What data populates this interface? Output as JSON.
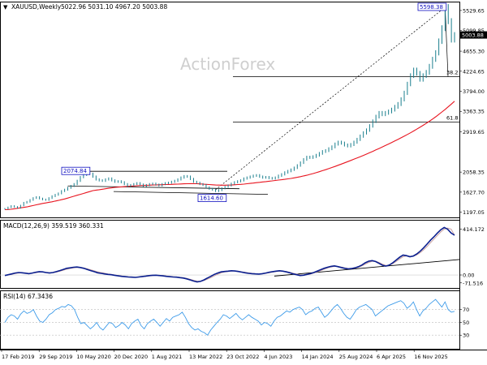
{
  "header": {
    "symbol": "XAUUSD,Weekly",
    "ohlc": "5022.96 5031.10 4967.20 5003.88"
  },
  "watermark": "ActionForex",
  "colors": {
    "price": "#1a7f8e",
    "sma": "#e8141f",
    "macd_main": "#0a1f8f",
    "macd_signal": "#c8a0a0",
    "rsi": "#3d9be9",
    "trend": "#000000",
    "annot_border": "#1010c0",
    "current_bg": "#000000"
  },
  "chart_data": [
    {
      "type": "line",
      "panel": "price",
      "title": "XAUUSD,Weekly",
      "x_labels": [
        "17 Feb 2019",
        "29 Sep 2019",
        "10 May 2020",
        "20 Dec 2020",
        "1 Aug 2021",
        "13 Mar 2022",
        "23 Oct 2022",
        "4 Jun 2023",
        "14 Jan 2024",
        "25 Aug 2024",
        "6 Apr 2025",
        "16 Nov 2025"
      ],
      "y_ticks": [
        "5529.65",
        "5099.85",
        "4655.30",
        "4224.65",
        "3794.00",
        "3363.35",
        "2919.65",
        "2058.35",
        "1627.70",
        "1197.05"
      ],
      "ylim": [
        1120,
        5650
      ],
      "current_value": "5003.88",
      "series": [
        {
          "key": "close",
          "values": [
            1270,
            1300,
            1330,
            1310,
            1290,
            1340,
            1400,
            1420,
            1460,
            1500,
            1520,
            1490,
            1470,
            1460,
            1500,
            1540,
            1570,
            1600,
            1650,
            1680,
            1720,
            1760,
            1800,
            1870,
            1950,
            2000,
            2040,
            2020,
            1960,
            1900,
            1880,
            1870,
            1900,
            1920,
            1880,
            1850,
            1860,
            1840,
            1800,
            1760,
            1780,
            1800,
            1820,
            1790,
            1760,
            1780,
            1800,
            1810,
            1790,
            1770,
            1800,
            1820,
            1830,
            1850,
            1870,
            1900,
            1940,
            1970,
            1960,
            1910,
            1850,
            1830,
            1800,
            1780,
            1730,
            1700,
            1680,
            1650,
            1670,
            1710,
            1740,
            1770,
            1810,
            1840,
            1860,
            1880,
            1920,
            1940,
            1960,
            1980,
            1990,
            1960,
            1940,
            1950,
            1930,
            1920,
            1940,
            1980,
            2010,
            2050,
            2080,
            2110,
            2150,
            2200,
            2260,
            2330,
            2380,
            2370,
            2390,
            2420,
            2460,
            2500,
            2520,
            2560,
            2600,
            2660,
            2700,
            2680,
            2640,
            2620,
            2650,
            2700,
            2760,
            2830,
            2900,
            2960,
            3050,
            3150,
            3250,
            3330,
            3300,
            3330,
            3360,
            3400,
            3460,
            3520,
            3620,
            3760,
            3950,
            4130,
            4250,
            4180,
            4050,
            4130,
            4200,
            4330,
            4480,
            4620,
            4870,
            5150,
            5598.38,
            5300,
            4900,
            5003.88
          ]
        },
        {
          "key": "sma",
          "values": [
            1250,
            1255,
            1260,
            1270,
            1280,
            1290,
            1300,
            1310,
            1325,
            1340,
            1355,
            1370,
            1385,
            1395,
            1410,
            1420,
            1435,
            1450,
            1465,
            1480,
            1500,
            1520,
            1540,
            1560,
            1580,
            1600,
            1620,
            1640,
            1660,
            1670,
            1680,
            1690,
            1700,
            1710,
            1720,
            1730,
            1735,
            1740,
            1745,
            1750,
            1755,
            1760,
            1765,
            1770,
            1772,
            1775,
            1777,
            1780,
            1782,
            1785,
            1788,
            1790,
            1792,
            1795,
            1798,
            1800,
            1803,
            1806,
            1808,
            1810,
            1810,
            1808,
            1805,
            1800,
            1795,
            1790,
            1785,
            1780,
            1778,
            1776,
            1776,
            1778,
            1780,
            1785,
            1790,
            1795,
            1800,
            1808,
            1815,
            1822,
            1830,
            1838,
            1846,
            1854,
            1862,
            1870,
            1878,
            1886,
            1894,
            1902,
            1912,
            1922,
            1934,
            1946,
            1960,
            1975,
            1990,
            2008,
            2026,
            2046,
            2066,
            2088,
            2110,
            2133,
            2156,
            2180,
            2205,
            2230,
            2256,
            2282,
            2308,
            2334,
            2360,
            2388,
            2416,
            2445,
            2474,
            2504,
            2534,
            2565,
            2596,
            2628,
            2660,
            2693,
            2726,
            2760,
            2795,
            2830,
            2866,
            2903,
            2941,
            2980,
            3020,
            3062,
            3105,
            3150,
            3197,
            3246,
            3297,
            3350,
            3405,
            3462,
            3520,
            3580
          ]
        }
      ],
      "annotations": {
        "high_label": "5598.38",
        "low_label": "1614.60",
        "prior_high_label": "2074.84",
        "fib_38": "38.2",
        "fib_61": "61.8",
        "fib_38_level": 4108,
        "fib_61_level": 3134,
        "range_top": 2074.84,
        "range_bottom": 1614.6
      }
    },
    {
      "type": "line",
      "panel": "macd",
      "title": "MACD(12,26,9) 359.519 360.331",
      "y_ticks": [
        "414.172",
        "0.00",
        "-71.516"
      ],
      "ylim": [
        -110,
        470
      ],
      "series": [
        {
          "key": "macd",
          "values": [
            -5,
            2,
            10,
            18,
            22,
            20,
            16,
            12,
            18,
            25,
            30,
            28,
            22,
            18,
            22,
            30,
            40,
            50,
            60,
            65,
            70,
            72,
            68,
            60,
            50,
            40,
            30,
            20,
            15,
            10,
            5,
            2,
            -3,
            -8,
            -12,
            -15,
            -18,
            -20,
            -22,
            -18,
            -14,
            -10,
            -6,
            -3,
            -2,
            -5,
            -8,
            -12,
            -15,
            -18,
            -20,
            -24,
            -28,
            -35,
            -45,
            -55,
            -62,
            -58,
            -45,
            -28,
            -12,
            5,
            18,
            28,
            32,
            35,
            38,
            36,
            32,
            26,
            20,
            15,
            12,
            10,
            8,
            12,
            18,
            24,
            30,
            35,
            38,
            35,
            28,
            20,
            10,
            2,
            -5,
            -2,
            5,
            12,
            22,
            35,
            48,
            60,
            70,
            78,
            82,
            76,
            68,
            60,
            55,
            58,
            65,
            75,
            90,
            110,
            125,
            130,
            122,
            105,
            88,
            80,
            90,
            110,
            135,
            160,
            180,
            175,
            165,
            172,
            190,
            215,
            245,
            280,
            315,
            345,
            380,
            410,
            430,
            414.172,
            380,
            359.519
          ]
        },
        {
          "key": "signal",
          "values": [
            -3,
            0,
            6,
            13,
            18,
            19,
            17,
            15,
            16,
            21,
            26,
            27,
            24,
            21,
            21,
            26,
            34,
            43,
            52,
            59,
            65,
            69,
            68,
            63,
            56,
            47,
            38,
            29,
            22,
            16,
            10,
            5,
            0,
            -5,
            -9,
            -13,
            -16,
            -18,
            -20,
            -19,
            -16,
            -13,
            -9,
            -5,
            -3,
            -4,
            -6,
            -9,
            -12,
            -15,
            -18,
            -21,
            -25,
            -31,
            -39,
            -48,
            -56,
            -57,
            -50,
            -38,
            -24,
            -8,
            7,
            19,
            27,
            32,
            36,
            36,
            34,
            29,
            24,
            19,
            15,
            12,
            10,
            11,
            15,
            20,
            26,
            31,
            35,
            35,
            31,
            24,
            16,
            8,
            1,
            -1,
            3,
            9,
            17,
            28,
            40,
            52,
            63,
            72,
            78,
            77,
            72,
            65,
            59,
            58,
            62,
            70,
            82,
            98,
            114,
            124,
            124,
            113,
            98,
            87,
            88,
            102,
            122,
            145,
            166,
            173,
            169,
            170,
            182,
            202,
            228,
            258,
            292,
            325,
            358,
            390,
            415,
            425,
            415,
            360.331
          ]
        },
        {
          "key": "trend",
          "values": [
            -5,
            -5,
            -5,
            -5,
            -5,
            -5,
            -5,
            -5,
            -5,
            -5,
            -5,
            -5,
            -5,
            -5,
            -5,
            -5,
            -5,
            -5,
            -5,
            -5,
            -5,
            -5,
            -5,
            -5,
            -5,
            -5,
            -5,
            -5,
            -5,
            -5,
            -5,
            -5,
            -5,
            -5,
            -5,
            -5,
            -5,
            -5,
            -5,
            -5,
            -5,
            -5,
            -5,
            -5,
            -5,
            -5,
            -5,
            -5,
            -5,
            -5,
            -5,
            -5,
            -5,
            -5,
            -5,
            -5,
            -5,
            -5,
            -5,
            -5,
            -5,
            -5,
            -5,
            -5,
            -5,
            -5,
            -5,
            -5,
            -5,
            -5,
            -5,
            -5,
            -5,
            -5,
            -5,
            -5,
            -5,
            -5,
            -5,
            -5,
            -5,
            -5,
            -5,
            -5,
            -5,
            -5,
            -5,
            -5,
            -5,
            -5,
            -5,
            -5,
            -5,
            -5,
            -5,
            -5,
            -5,
            -5,
            -5,
            -5,
            -5,
            -5,
            -5,
            -5,
            -5,
            -5,
            -5,
            -5,
            -5,
            -5,
            -5,
            -5,
            -5,
            -5,
            -5,
            -5,
            -5,
            -5,
            -5,
            -5,
            -5,
            -5,
            -5,
            -5,
            -5,
            -5,
            -5,
            -5,
            -5,
            -5,
            -5,
            -5,
            -5,
            -5,
            -5,
            -5,
            -5,
            -5,
            -5,
            -5,
            -5,
            -5,
            -5,
            -5
          ]
        }
      ]
    },
    {
      "type": "line",
      "panel": "rsi",
      "title": "RSI(14) 67.3436",
      "y_ticks": [
        "70",
        "50",
        "30"
      ],
      "ylim": [
        10,
        95
      ],
      "series": [
        {
          "key": "rsi",
          "values": [
            50,
            58,
            62,
            60,
            55,
            63,
            68,
            64,
            66,
            70,
            60,
            52,
            50,
            55,
            62,
            65,
            70,
            72,
            75,
            74,
            78,
            76,
            70,
            58,
            48,
            50,
            45,
            40,
            44,
            50,
            42,
            38,
            44,
            50,
            48,
            42,
            45,
            50,
            46,
            40,
            48,
            52,
            55,
            45,
            40,
            48,
            52,
            55,
            50,
            44,
            50,
            56,
            52,
            58,
            60,
            62,
            66,
            58,
            48,
            42,
            38,
            40,
            36,
            34,
            30,
            38,
            44,
            50,
            55,
            62,
            60,
            56,
            60,
            64,
            58,
            54,
            58,
            62,
            58,
            55,
            52,
            46,
            50,
            48,
            44,
            52,
            58,
            60,
            64,
            68,
            66,
            70,
            72,
            74,
            70,
            62,
            66,
            68,
            72,
            74,
            66,
            58,
            62,
            68,
            74,
            78,
            72,
            64,
            58,
            55,
            62,
            70,
            74,
            76,
            78,
            74,
            70,
            60,
            64,
            68,
            72,
            76,
            78,
            80,
            82,
            84,
            80,
            72,
            76,
            82,
            70,
            60,
            68,
            72,
            78,
            82,
            86,
            80,
            74,
            82,
            70,
            66,
            67.3436
          ]
        }
      ]
    }
  ]
}
